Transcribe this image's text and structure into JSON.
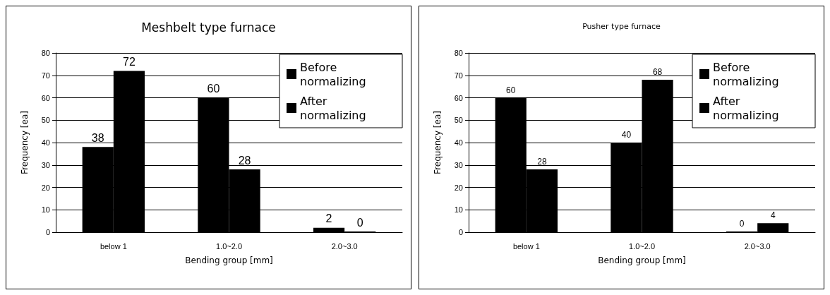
{
  "chart_data": [
    {
      "type": "bar",
      "title": "Meshbelt type furnace",
      "xlabel": "Bending group [mm]",
      "ylabel": "Frequency [ea]",
      "categories": [
        "below 1",
        "1.0~2.0",
        "2.0~3.0"
      ],
      "series": [
        {
          "name": "Before normalizing",
          "color": "#000000",
          "values": [
            38,
            60,
            2
          ]
        },
        {
          "name": "After normalizing",
          "color": "#000000",
          "values": [
            72,
            28,
            0
          ]
        }
      ],
      "ylim": [
        0,
        80
      ],
      "yticks": [
        0,
        10,
        20,
        30,
        40,
        50,
        60,
        70,
        80
      ],
      "grid": "y",
      "legend": "top right",
      "data_labels": true
    },
    {
      "type": "bar",
      "title": "Pusher type furnace",
      "xlabel": "Bending group [mm]",
      "ylabel": "Frequency [ea]",
      "categories": [
        "below 1",
        "1.0~2.0",
        "2.0~3.0"
      ],
      "series": [
        {
          "name": "Before normalizing",
          "color": "#000000",
          "values": [
            60,
            40,
            0
          ]
        },
        {
          "name": "After normalizing",
          "color": "#000000",
          "values": [
            28,
            68,
            4
          ]
        }
      ],
      "ylim": [
        0,
        80
      ],
      "yticks": [
        0,
        10,
        20,
        30,
        40,
        50,
        60,
        70,
        80
      ],
      "grid": "y",
      "legend": "top right",
      "data_labels": true
    }
  ]
}
